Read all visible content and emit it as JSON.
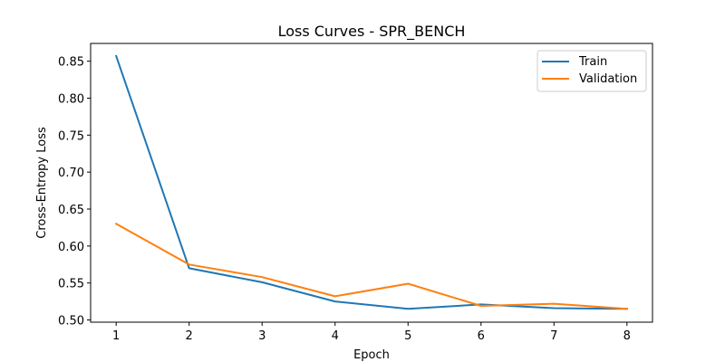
{
  "chart_data": {
    "type": "line",
    "title": "Loss Curves - SPR_BENCH",
    "xlabel": "Epoch",
    "ylabel": "Cross-Entropy Loss",
    "x": [
      1,
      2,
      3,
      4,
      5,
      6,
      7,
      8
    ],
    "xticks": [
      1,
      2,
      3,
      4,
      5,
      6,
      7,
      8
    ],
    "yticks": [
      0.5,
      0.55,
      0.6,
      0.65,
      0.7,
      0.75,
      0.8,
      0.85
    ],
    "ytick_labels": [
      "0.50",
      "0.55",
      "0.60",
      "0.65",
      "0.70",
      "0.75",
      "0.80",
      "0.85"
    ],
    "xlim": [
      0.65,
      8.35
    ],
    "ylim": [
      0.497,
      0.874
    ],
    "grid": false,
    "legend_position": "top-right",
    "series": [
      {
        "name": "Train",
        "color": "#1f77b4",
        "values": [
          0.857,
          0.57,
          0.551,
          0.525,
          0.515,
          0.521,
          0.516,
          0.515
        ]
      },
      {
        "name": "Validation",
        "color": "#ff7f0e",
        "values": [
          0.63,
          0.575,
          0.558,
          0.532,
          0.549,
          0.519,
          0.522,
          0.515
        ]
      }
    ]
  }
}
